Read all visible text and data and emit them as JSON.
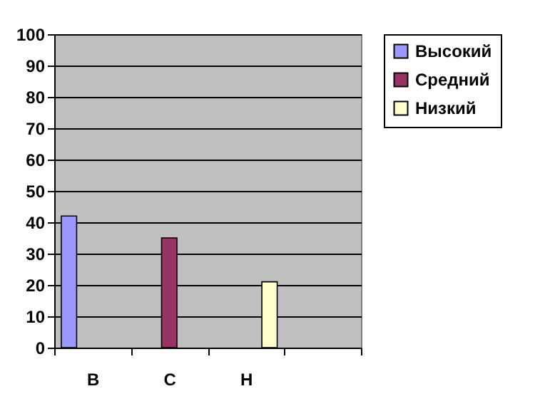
{
  "chart_data": {
    "type": "bar",
    "categories": [
      "В",
      "С",
      "Н",
      null
    ],
    "series": [
      {
        "name": "Высокий",
        "color": "#9999ff",
        "values": [
          42,
          null,
          null,
          null
        ]
      },
      {
        "name": "Средний",
        "color": "#993366",
        "values": [
          null,
          35,
          null,
          null
        ]
      },
      {
        "name": "Низкий",
        "color": "#ffffcc",
        "values": [
          null,
          null,
          21,
          null
        ]
      }
    ],
    "ylim": [
      0,
      100
    ],
    "yticks": [
      0,
      10,
      20,
      30,
      40,
      50,
      60,
      70,
      80,
      90,
      100
    ],
    "grid": "y",
    "legend": "right"
  }
}
